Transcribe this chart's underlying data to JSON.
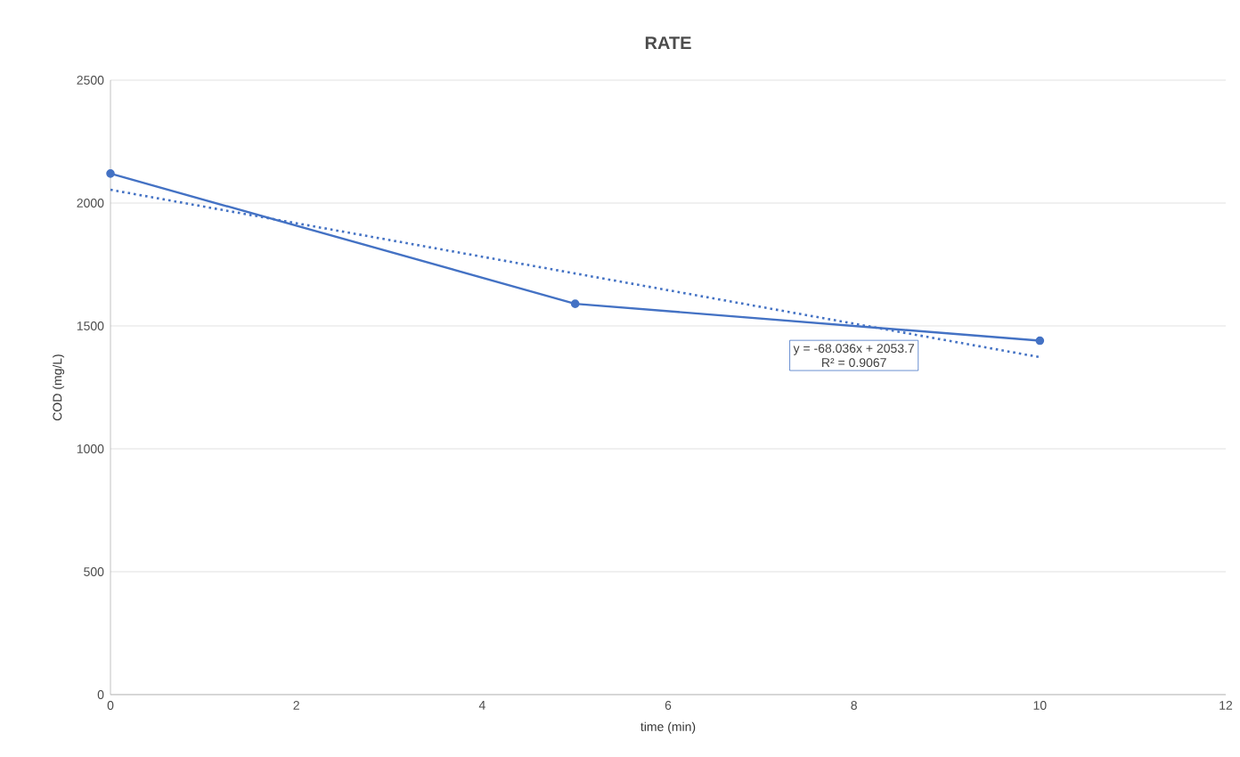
{
  "chart_data": {
    "type": "line",
    "title": "RATE",
    "xlabel": "time (min)",
    "ylabel": "COD (mg/L)",
    "series": [
      {
        "color": "#4472c4",
        "x": [
          0,
          5,
          10
        ],
        "values": [
          2120,
          1590,
          1440
        ],
        "marker": "circle",
        "line_style": "solid"
      },
      {
        "color": "#4472c4",
        "x": [
          0,
          10
        ],
        "values": [
          2054,
          1373
        ],
        "marker": "none",
        "line_style": "dotted"
      }
    ],
    "xlim": [
      0,
      12
    ],
    "xticks": [
      0,
      2,
      4,
      6,
      8,
      10,
      12
    ],
    "ylim": [
      0,
      2500
    ],
    "yticks": [
      0,
      500,
      1000,
      1500,
      2000,
      2500
    ],
    "grid": "y",
    "annotations": [
      "y = -68.036x + 2053.7",
      "R² = 0.9067"
    ]
  }
}
